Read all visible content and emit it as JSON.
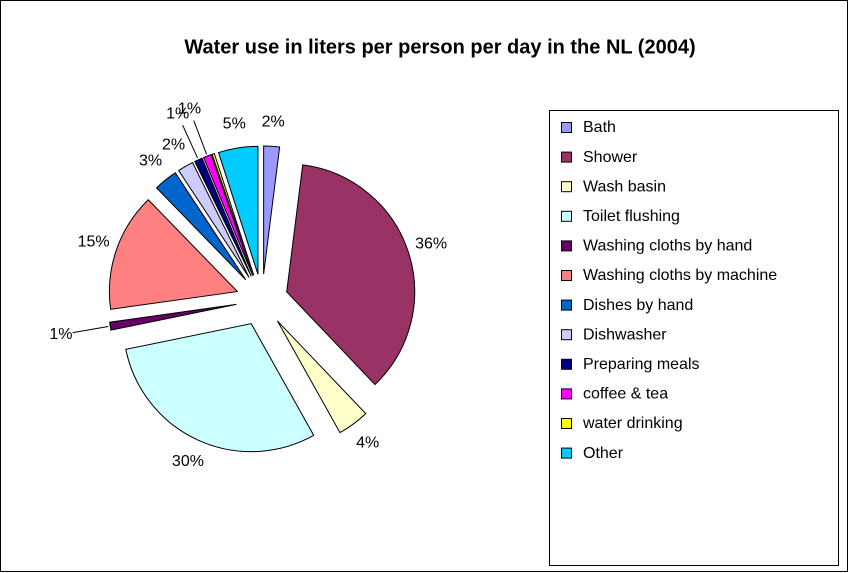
{
  "chart_data": {
    "type": "pie",
    "title": "Water use in liters per person per day in the NL (2004)",
    "categories": [
      "Bath",
      "Shower",
      "Wash basin",
      "Toilet flushing",
      "Washing cloths by hand",
      "Washing cloths by machine",
      "Dishes by hand",
      "Dishwasher",
      "Preparing meals",
      "coffee & tea",
      "water drinking",
      "Other"
    ],
    "values": [
      2,
      36,
      4,
      30,
      1,
      15,
      3,
      2,
      1,
      1,
      0.3,
      5
    ],
    "value_labels": [
      "2%",
      "36%",
      "4%",
      "30%",
      "1%",
      "15%",
      "3%",
      "2%",
      "1%",
      "1%",
      null,
      "5%"
    ],
    "colors": [
      "#9999ff",
      "#993366",
      "#ffffcc",
      "#ccffff",
      "#660066",
      "#ff8080",
      "#0066cc",
      "#ccccff",
      "#000080",
      "#ff00ff",
      "#ffff00",
      "#00ccff"
    ],
    "legend": "right"
  }
}
